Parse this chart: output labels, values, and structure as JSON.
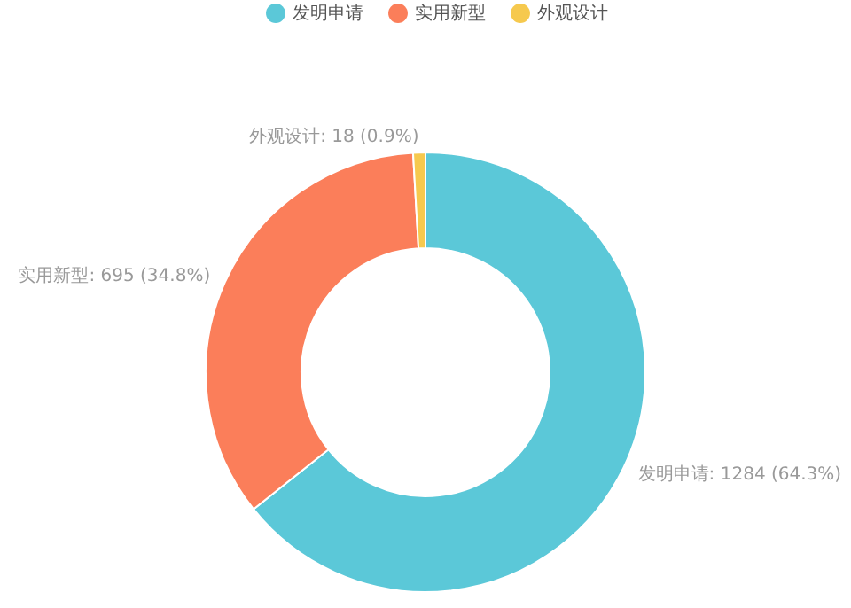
{
  "chart_data": {
    "type": "donut",
    "categories": [
      "发明申请",
      "实用新型",
      "外观设计"
    ],
    "values": [
      1284,
      695,
      18
    ],
    "colors": [
      "#5bc8d8",
      "#fb7e5a",
      "#f6c94e"
    ],
    "value_labels": [
      "发明申请: 1284 (64.3%)",
      "实用新型: 695 (34.8%)",
      "外观设计: 18 (0.9%)"
    ],
    "legend": "top"
  }
}
